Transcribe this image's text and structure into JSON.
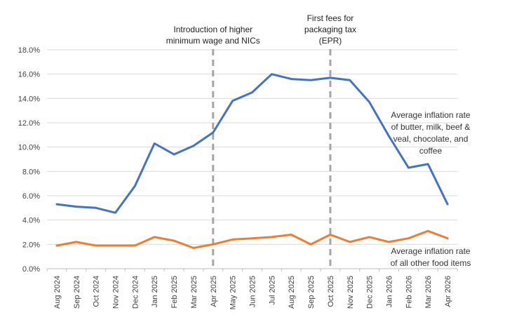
{
  "chart_data": {
    "type": "line",
    "categories": [
      "Aug 2024",
      "Sep 2024",
      "Oct 2024",
      "Nov 2024",
      "Dec 2024",
      "Jan 2025",
      "Feb 2025",
      "Mar 2025",
      "Apr 2025",
      "May 2025",
      "Jun 2025",
      "Jul 2025",
      "Aug 2025",
      "Sep 2025",
      "Oct 2025",
      "Nov 2025",
      "Dec 2025",
      "Jan 2026",
      "Feb 2026",
      "Mar 2026",
      "Apr 2026"
    ],
    "series": [
      {
        "name": "Average inflation rate of butter, milk, beef & veal, chocolate, and coffee",
        "label_lines": [
          "Average inflation rate",
          "of butter, milk, beef &",
          "veal, chocolate, and",
          "coffee"
        ],
        "color": "#4472C4",
        "values": [
          5.3,
          5.1,
          5.0,
          4.6,
          6.8,
          10.3,
          9.4,
          10.1,
          11.2,
          13.8,
          14.5,
          16.0,
          15.6,
          15.5,
          15.7,
          15.5,
          13.7,
          10.9,
          8.3,
          8.6,
          5.3
        ]
      },
      {
        "name": "Average inflation rate of all other food items",
        "label_lines": [
          "Average inflation rate",
          "of all other food items"
        ],
        "color": "#ED7D31",
        "values": [
          1.9,
          2.2,
          1.9,
          1.9,
          1.9,
          2.6,
          2.3,
          1.7,
          2.0,
          2.4,
          2.5,
          2.6,
          2.8,
          2.0,
          2.8,
          2.2,
          2.6,
          2.2,
          2.5,
          3.1,
          2.5
        ]
      }
    ],
    "yticks": [
      "0.0%",
      "2.0%",
      "4.0%",
      "6.0%",
      "8.0%",
      "10.0%",
      "12.0%",
      "14.0%",
      "16.0%",
      "18.0%"
    ],
    "ylim": [
      0,
      18
    ],
    "grid": true,
    "annotations": [
      {
        "category": "Apr 2025",
        "lines": [
          "Introduction of higher",
          "minimum wage and NICs"
        ]
      },
      {
        "category": "Oct 2025",
        "lines": [
          "First fees for",
          "packaging tax",
          "(EPR)"
        ]
      }
    ],
    "colors": {
      "grid": "#D9D9D9",
      "axis": "#BFBFBF",
      "marker_line": "#A6A6A6"
    }
  }
}
